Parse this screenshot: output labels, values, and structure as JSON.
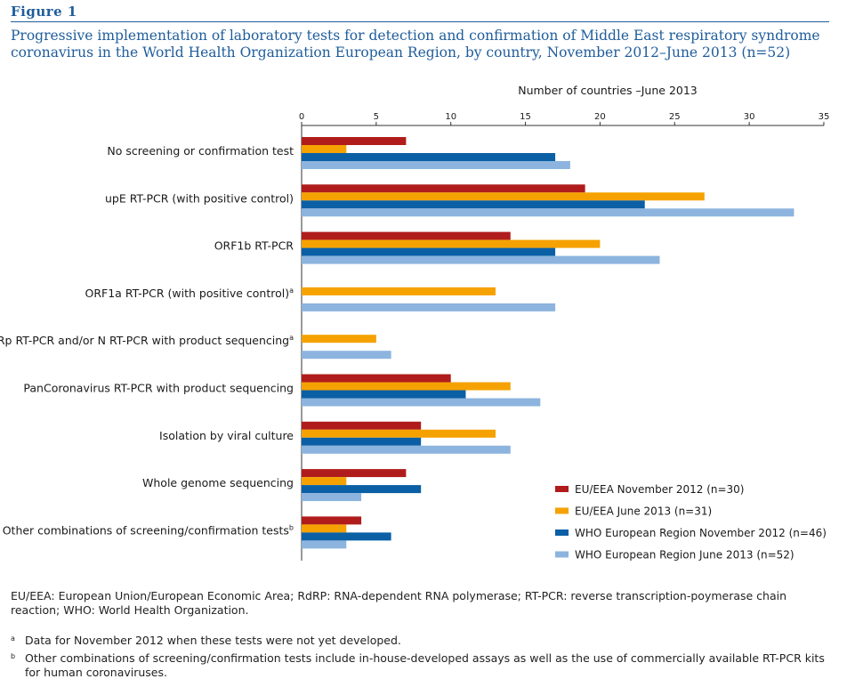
{
  "figure": {
    "label": "Figure 1",
    "title": "Progressive implementation of laboratory tests for detection and confirmation of Middle East respiratory syndrome coronavirus in the World Health Organization European Region, by country, November 2012–June 2013 (n=52)"
  },
  "chart_data": {
    "type": "bar",
    "orientation": "horizontal",
    "xlabel": "Number of countries –June 2013",
    "xlim": [
      0,
      35
    ],
    "xticks": [
      0,
      5,
      10,
      15,
      20,
      25,
      30,
      35
    ],
    "grid": false,
    "legend_position": "bottom-right",
    "categories": [
      {
        "label": "No screening or confirmation test",
        "sup": ""
      },
      {
        "label": "upE RT-PCR (with positive control)",
        "sup": ""
      },
      {
        "label": "ORF1b RT-PCR",
        "sup": ""
      },
      {
        "label": "ORF1a RT-PCR (with positive control)",
        "sup": "a"
      },
      {
        "label": "RdRp RT-PCR and/or N RT-PCR with product sequencing",
        "sup": "a"
      },
      {
        "label": "PanCoronavirus RT-PCR with product sequencing",
        "sup": ""
      },
      {
        "label": "Isolation by viral culture",
        "sup": ""
      },
      {
        "label": "Whole genome sequencing",
        "sup": ""
      },
      {
        "label": "Other combinations of screening/confirmation tests",
        "sup": "b"
      }
    ],
    "series": [
      {
        "name": "EU/EEA November 2012 (n=30)",
        "color": "#b01c1c",
        "values": [
          7,
          19,
          14,
          null,
          null,
          10,
          8,
          7,
          4
        ]
      },
      {
        "name": "EU/EEA June 2013 (n=31)",
        "color": "#f5a200",
        "values": [
          3,
          27,
          20,
          13,
          5,
          14,
          13,
          3,
          3
        ]
      },
      {
        "name": "WHO European Region November 2012 (n=46)",
        "color": "#0b5fa5",
        "values": [
          17,
          23,
          17,
          null,
          null,
          11,
          8,
          8,
          6
        ]
      },
      {
        "name": "WHO European Region June 2013 (n=52)",
        "color": "#8cb4de",
        "values": [
          18,
          33,
          24,
          17,
          6,
          16,
          14,
          4,
          3
        ]
      }
    ]
  },
  "notes": {
    "abbreviations": "EU/EEA: European Union/European Economic Area; RdRP: RNA-dependent RNA polymerase; RT-PCR: reverse transcription-poymerase chain reaction; WHO: World Health Organization.",
    "footnotes": [
      {
        "mark": "a",
        "text": "Data for November 2012 when these tests were not yet developed."
      },
      {
        "mark": "b",
        "text": "Other combinations of screening/confirmation tests include in-house-developed assays as well as the use of commercially available RT-PCR kits for human coronaviruses."
      }
    ]
  }
}
